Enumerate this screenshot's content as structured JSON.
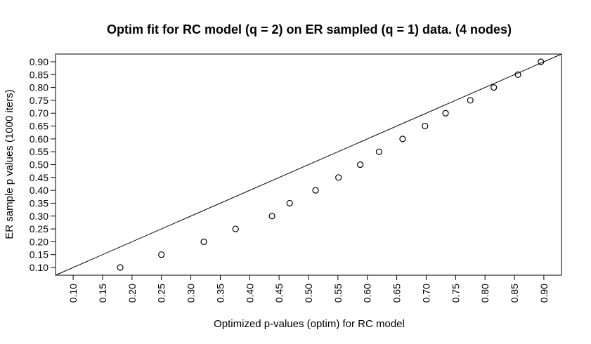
{
  "chart_data": {
    "type": "scatter",
    "title": "Optim fit for RC model (q = 2) on ER sampled (q = 1) data. (4 nodes)",
    "xlabel": "Optimized p-values (optim) for RC model",
    "ylabel": "ER sample p values (1000 iters)",
    "xlim": [
      0.07,
      0.93
    ],
    "ylim": [
      0.07,
      0.93
    ],
    "xticks": [
      "0.10",
      "0.15",
      "0.20",
      "0.25",
      "0.30",
      "0.35",
      "0.40",
      "0.45",
      "0.50",
      "0.55",
      "0.60",
      "0.65",
      "0.70",
      "0.75",
      "0.80",
      "0.85",
      "0.90"
    ],
    "yticks": [
      "0.10",
      "0.15",
      "0.20",
      "0.25",
      "0.30",
      "0.35",
      "0.40",
      "0.45",
      "0.50",
      "0.55",
      "0.60",
      "0.65",
      "0.70",
      "0.75",
      "0.80",
      "0.85",
      "0.90"
    ],
    "grid": false,
    "reference_line": {
      "slope": 1,
      "intercept": 0
    },
    "points": {
      "x": [
        0.18,
        0.25,
        0.322,
        0.376,
        0.438,
        0.468,
        0.512,
        0.551,
        0.588,
        0.62,
        0.66,
        0.698,
        0.733,
        0.775,
        0.815,
        0.856,
        0.895
      ],
      "y": [
        0.1,
        0.15,
        0.2,
        0.25,
        0.3,
        0.35,
        0.4,
        0.45,
        0.5,
        0.55,
        0.6,
        0.65,
        0.7,
        0.75,
        0.8,
        0.85,
        0.9
      ]
    }
  }
}
